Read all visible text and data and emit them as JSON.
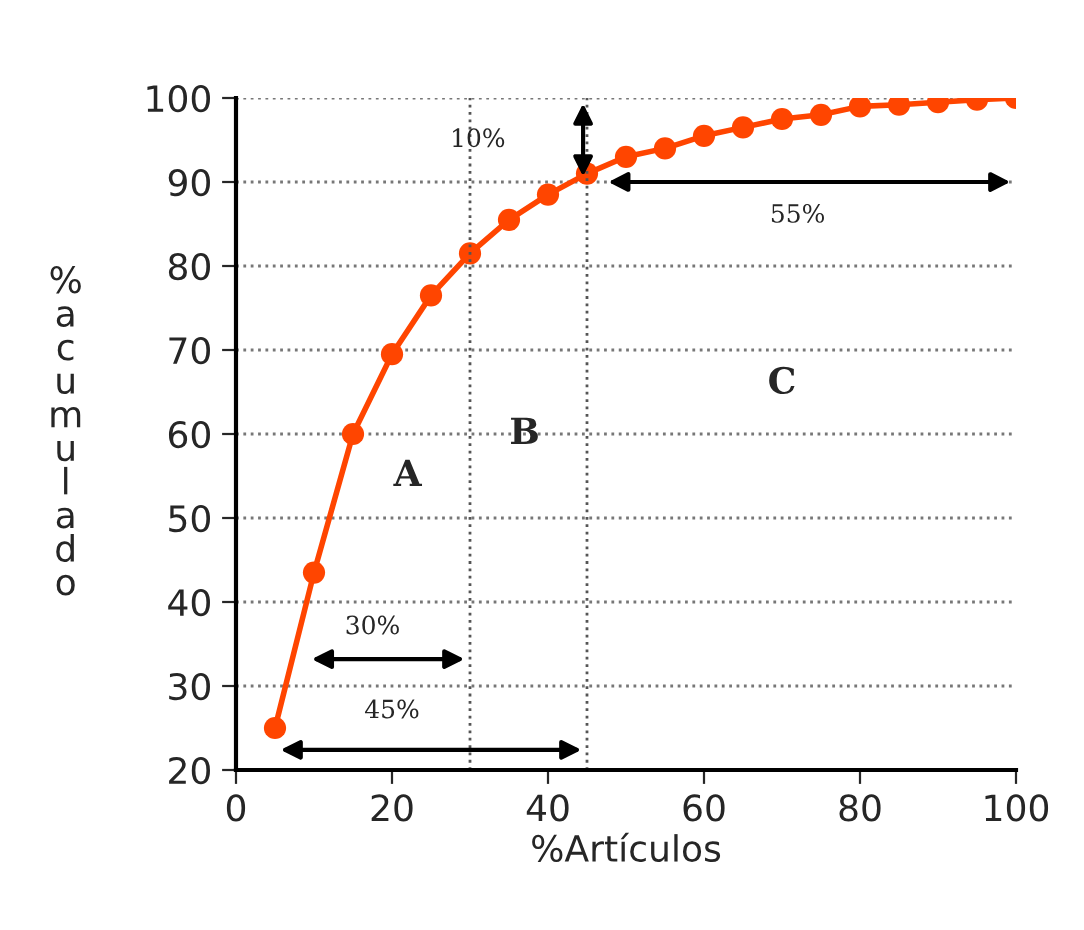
{
  "chart_data": {
    "type": "line",
    "xlabel": "%Artículos",
    "ylabel": "%acumulado",
    "x": [
      5,
      10,
      15,
      20,
      25,
      30,
      35,
      40,
      45,
      50,
      55,
      60,
      65,
      70,
      75,
      80,
      85,
      90,
      95,
      100
    ],
    "series": [
      {
        "color": "#ff4500",
        "values": [
          25,
          43.5,
          60,
          69.5,
          76.5,
          81.5,
          85.5,
          88.5,
          91,
          93,
          94,
          95.5,
          96.5,
          97.5,
          98,
          99,
          99.2,
          99.5,
          99.8,
          100
        ]
      }
    ],
    "marker": "circle",
    "line_style": "solid",
    "xlim": [
      0,
      100
    ],
    "ylim": [
      20,
      100
    ],
    "xticks": [
      0,
      20,
      40,
      60,
      80,
      100
    ],
    "yticks": [
      20,
      30,
      40,
      50,
      60,
      70,
      80,
      90,
      100
    ],
    "grid": "y",
    "legend": false,
    "ref_lines": [
      {
        "axis": "x",
        "value": 30,
        "color": "#555555",
        "line_style": "dotted"
      },
      {
        "axis": "x",
        "value": 45,
        "color": "#555555",
        "line_style": "dotted"
      }
    ],
    "annotations": [
      "A",
      "B",
      "C",
      "10%",
      "55%",
      "30%",
      "45%"
    ]
  }
}
